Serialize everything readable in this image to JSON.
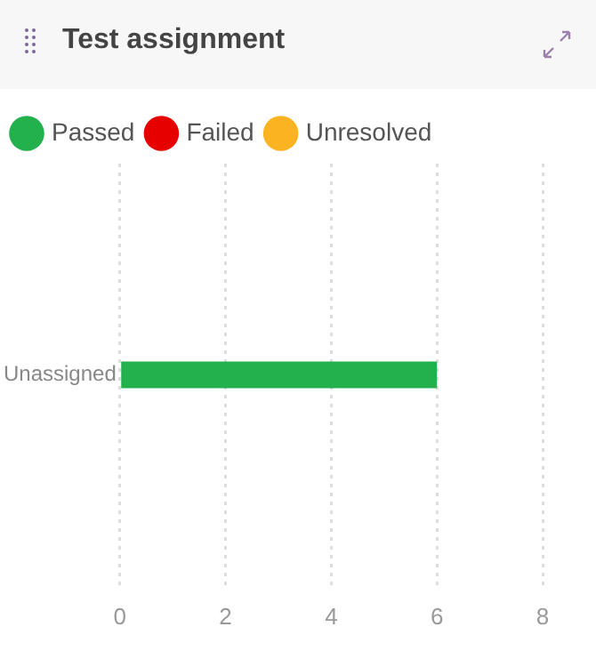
{
  "chart_data": {
    "type": "bar",
    "title": "Test assignment",
    "orientation": "horizontal",
    "stacked": true,
    "categories": [
      "Unassigned"
    ],
    "series": [
      {
        "name": "Passed",
        "color": "#22b14c",
        "values": [
          6
        ]
      },
      {
        "name": "Failed",
        "color": "#e60000",
        "values": [
          0
        ]
      },
      {
        "name": "Unresolved",
        "color": "#fbb321",
        "values": [
          0
        ]
      }
    ],
    "xlim": [
      0,
      8
    ],
    "xticks": [
      0,
      2,
      4,
      6,
      8
    ],
    "grid": "x",
    "legend": "top left"
  }
}
